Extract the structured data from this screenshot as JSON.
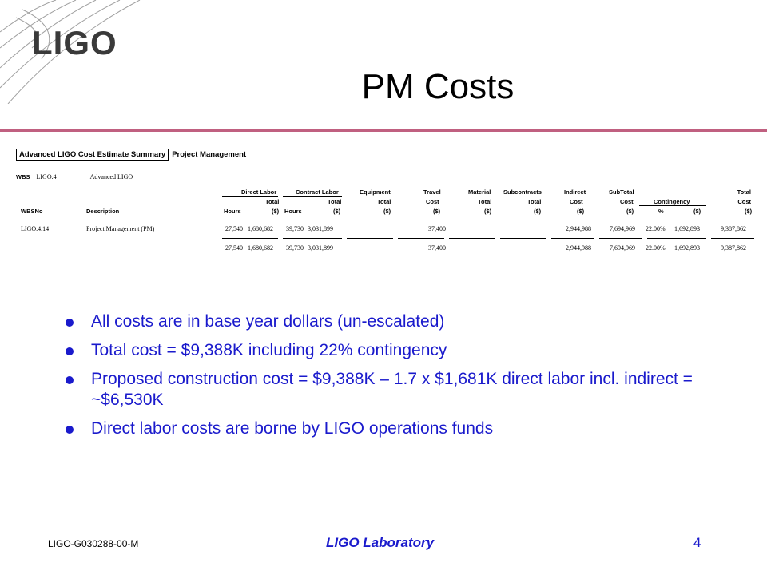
{
  "logo": {
    "text": "LIGO"
  },
  "slide": {
    "title": "PM Costs"
  },
  "sheet": {
    "title_boxed": "Advanced LIGO Cost Estimate Summary",
    "title_sub": "Project Management",
    "wbs_label": "WBS",
    "wbs_code": "LIGO.4",
    "wbs_name": "Advanced LIGO",
    "group_headers": [
      "Direct Labor",
      "Contract Labor",
      "Equipment",
      "Travel",
      "Material",
      "Subcontracts",
      "Indirect",
      "SubTotal",
      "Contingency",
      "Total"
    ],
    "sub_headers": [
      "Total",
      "Total",
      "Total",
      "Cost",
      "Total",
      "Total",
      "Cost",
      "Cost",
      "Cost"
    ],
    "col_headers": [
      "WBSNo",
      "Description",
      "Hours",
      "($)",
      "Hours",
      "($)",
      "($)",
      "($)",
      "($)",
      "($)",
      "($)",
      "($)",
      "%",
      "($)",
      "($)"
    ],
    "row": {
      "wbs": "LIGO.4.14",
      "description": "Project Management (PM)",
      "values": [
        "27,540",
        "1,680,682",
        "39,730",
        "3,031,899",
        "",
        "37,400",
        "",
        "",
        "2,944,988",
        "7,694,969",
        "22.00%",
        "1,692,893",
        "9,387,862"
      ]
    },
    "totals": [
      "27,540",
      "1,680,682",
      "39,730",
      "3,031,899",
      "",
      "37,400",
      "",
      "",
      "2,944,988",
      "7,694,969",
      "22.00%",
      "1,692,893",
      "9,387,862"
    ]
  },
  "bullets": [
    "All costs are in base year dollars (un-escalated)",
    "Total cost = $9,388K including 22% contingency",
    "Proposed construction cost = $9,388K – 1.7 x $1,681K direct labor incl. indirect = ~$6,530K",
    "Direct labor costs are borne by LIGO operations funds"
  ],
  "footer": {
    "doc_id": "LIGO-G030288-00-M",
    "lab": "LIGO Laboratory",
    "page": "4"
  },
  "colors": {
    "accent": "#1a1acc",
    "rule": "#c06080"
  }
}
